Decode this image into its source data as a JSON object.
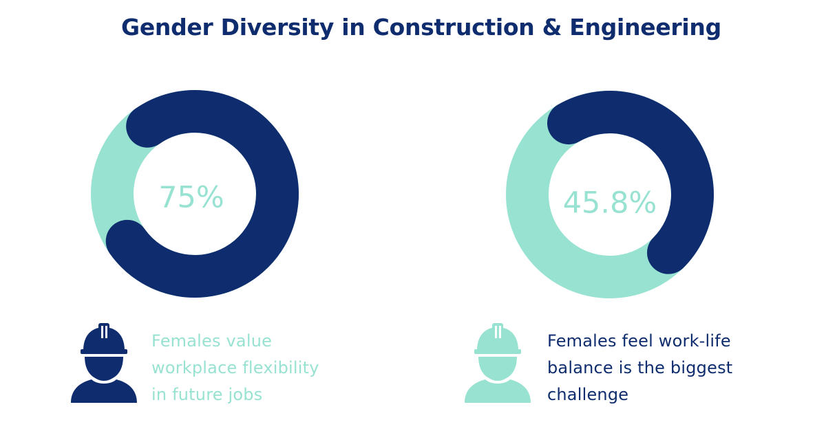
{
  "title": "Gender Diversity in Construction & Engineering",
  "colors": {
    "navy": "#0f2d6e",
    "mint": "#98e2d2"
  },
  "chart_data": [
    {
      "type": "pie",
      "variant": "donut",
      "center_label": "75%",
      "slices": [
        {
          "value": 75,
          "color": "#0f2d6e"
        },
        {
          "value": 25,
          "color": "#98e2d2"
        }
      ],
      "caption_lines": [
        "Females value",
        "workplace flexibility",
        "in future jobs"
      ],
      "caption_color": "#98e2d2",
      "label_color": "#98e2d2",
      "icon": "female-construction-worker-icon",
      "icon_color": "#0f2d6e"
    },
    {
      "type": "pie",
      "variant": "donut",
      "center_label": "45.8%",
      "slices": [
        {
          "value": 45.8,
          "color": "#0f2d6e"
        },
        {
          "value": 54.2,
          "color": "#98e2d2"
        }
      ],
      "caption_lines": [
        "Females feel work-life",
        "balance is the biggest",
        "challenge"
      ],
      "caption_color": "#0f2d6e",
      "label_color": "#98e2d2",
      "icon": "female-construction-worker-icon",
      "icon_color": "#98e2d2"
    }
  ]
}
